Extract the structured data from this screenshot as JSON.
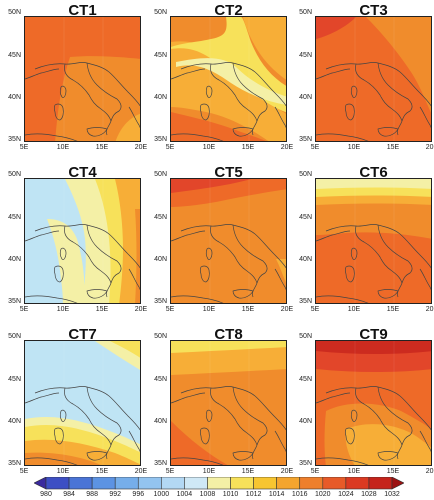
{
  "panels": [
    {
      "title": "CT1",
      "lat_labels": [
        "50N",
        "45N",
        "40N",
        "35N"
      ],
      "lon_labels": [
        "5E",
        "10E",
        "15E",
        "20E"
      ]
    },
    {
      "title": "CT2",
      "lat_labels": [
        "50N",
        "45N",
        "40N",
        "35N"
      ],
      "lon_labels": [
        "5E",
        "10E",
        "15E",
        "20E"
      ]
    },
    {
      "title": "CT3",
      "lat_labels": [
        "50N",
        "45N",
        "40N",
        "35N"
      ],
      "lon_labels": [
        "5E",
        "10E",
        "15E",
        "20E"
      ]
    },
    {
      "title": "CT4",
      "lat_labels": [
        "50N",
        "45N",
        "40N",
        "35N"
      ],
      "lon_labels": [
        "5E",
        "10E",
        "15E",
        "20E"
      ]
    },
    {
      "title": "CT5",
      "lat_labels": [
        "50N",
        "45N",
        "40N",
        "35N"
      ],
      "lon_labels": [
        "5E",
        "10E",
        "15E",
        "20E"
      ]
    },
    {
      "title": "CT6",
      "lat_labels": [
        "50N",
        "45N",
        "40N",
        "35N"
      ],
      "lon_labels": [
        "5E",
        "10E",
        "15E",
        "20E"
      ]
    },
    {
      "title": "CT7",
      "lat_labels": [
        "50N",
        "45N",
        "40N",
        "35N"
      ],
      "lon_labels": [
        "5E",
        "10E",
        "15E",
        "20E"
      ]
    },
    {
      "title": "CT8",
      "lat_labels": [
        "50N",
        "45N",
        "40N",
        "35N"
      ],
      "lon_labels": [
        "5E",
        "10E",
        "15E",
        "20E"
      ]
    },
    {
      "title": "CT9",
      "lat_labels": [
        "50N",
        "45N",
        "40N",
        "35N"
      ],
      "lon_labels": [
        "5E",
        "10E",
        "15E",
        "20E"
      ]
    }
  ],
  "colorbar": {
    "labels": [
      "980",
      "984",
      "988",
      "992",
      "996",
      "1000",
      "1004",
      "1008",
      "1010",
      "1012",
      "1014",
      "1016",
      "1020",
      "1024",
      "1028",
      "1032"
    ],
    "colors": [
      "#3a2a9e",
      "#3d4fc4",
      "#4a74d6",
      "#5c93e3",
      "#76aeea",
      "#93c4f0",
      "#b3d8f4",
      "#cfe8f6",
      "#f4f0a6",
      "#f7e15a",
      "#f7c530",
      "#f4a52e",
      "#ee7f2c",
      "#e75a28",
      "#db3a22",
      "#c5231b",
      "#9c1212"
    ]
  },
  "colors": {
    "orange": "#f08c2c",
    "red_orange": "#ee6a28",
    "red": "#e2462a",
    "dark_red": "#cc2b1f",
    "light_orange": "#f7ae37",
    "yellow": "#f7e15a",
    "pale_yellow": "#f4f0a6",
    "light_blue": "#bfe4f4"
  }
}
